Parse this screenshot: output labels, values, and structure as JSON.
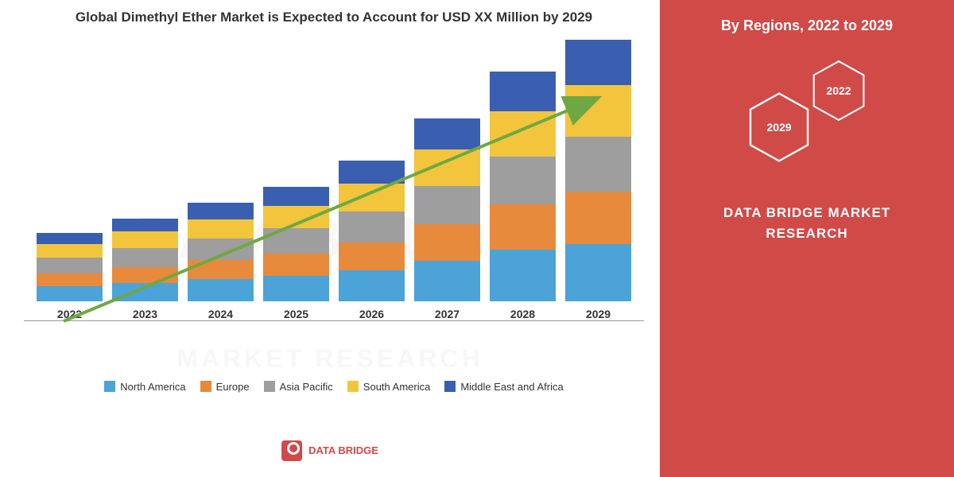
{
  "chart": {
    "type": "stacked-bar",
    "title": "Global Dimethyl Ether Market is Expected to Account for USD XX Million by 2029",
    "categories": [
      "2022",
      "2023",
      "2024",
      "2025",
      "2026",
      "2027",
      "2028",
      "2029"
    ],
    "series": [
      {
        "name": "North America",
        "color": "#4ba3d8",
        "values": [
          20,
          25,
          30,
          35,
          42,
          55,
          70,
          78
        ]
      },
      {
        "name": "Europe",
        "color": "#e88a3c",
        "values": [
          18,
          22,
          26,
          30,
          38,
          50,
          62,
          72
        ]
      },
      {
        "name": "Asia Pacific",
        "color": "#9e9e9e",
        "values": [
          22,
          26,
          30,
          35,
          42,
          52,
          65,
          75
        ]
      },
      {
        "name": "South America",
        "color": "#f2c53d",
        "values": [
          18,
          22,
          26,
          30,
          38,
          50,
          62,
          70
        ]
      },
      {
        "name": "Middle East and Africa",
        "color": "#3a5fb0",
        "values": [
          15,
          18,
          22,
          26,
          32,
          42,
          55,
          62
        ]
      }
    ],
    "max_total": 380,
    "arrow_color": "#6fa843",
    "background_color": "#ffffff",
    "axis_color": "#999999",
    "label_fontsize": 14,
    "title_fontsize": 17
  },
  "right_panel": {
    "background_color": "#d04a48",
    "title": "By Regions, 2022 to 2029",
    "hex1_label": "2029",
    "hex2_label": "2022",
    "brand_line1": "DATA BRIDGE MARKET",
    "brand_line2": "RESEARCH"
  },
  "watermark": {
    "main": "DATA BRIDGE",
    "sub": "MARKET RESEARCH"
  },
  "footer_logo": {
    "text": "DATA BRIDGE"
  }
}
